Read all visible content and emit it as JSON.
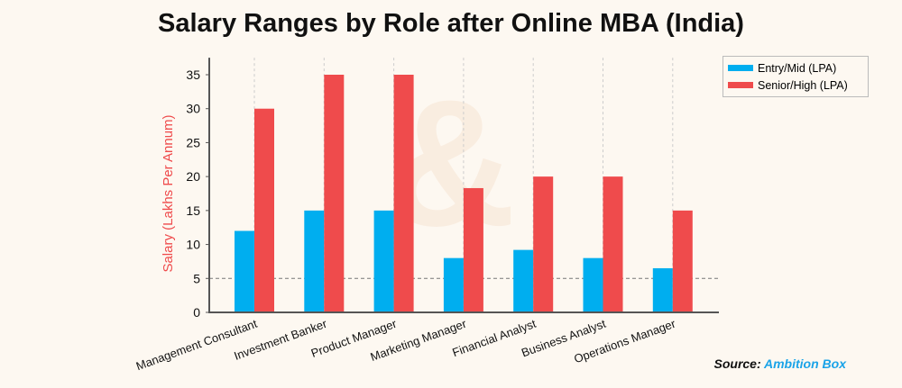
{
  "chart_data": {
    "type": "bar",
    "title": "Salary Ranges by Role after Online MBA (India)",
    "ylabel": "Salary (Lakhs Per Annum)",
    "xlabel": "",
    "ylim": [
      0,
      37.5
    ],
    "yticks": [
      0,
      5,
      10,
      15,
      20,
      25,
      30,
      35
    ],
    "categories": [
      "Management Consultant",
      "Investment Banker",
      "Product Manager",
      "Marketing Manager",
      "Financial Analyst",
      "Business Analyst",
      "Operations Manager"
    ],
    "series": [
      {
        "name": "Entry/Mid (LPA)",
        "color": "#00aeef",
        "values": [
          12,
          15,
          15,
          8,
          9.2,
          8,
          6.5
        ]
      },
      {
        "name": "Senior/High (LPA)",
        "color": "#ef4b4c",
        "values": [
          30,
          35,
          35,
          18.3,
          20,
          20,
          15
        ]
      }
    ],
    "legend_position": "top-right",
    "grid": "dashed"
  },
  "source": {
    "label": "Source:",
    "name": "Ambition Box"
  }
}
